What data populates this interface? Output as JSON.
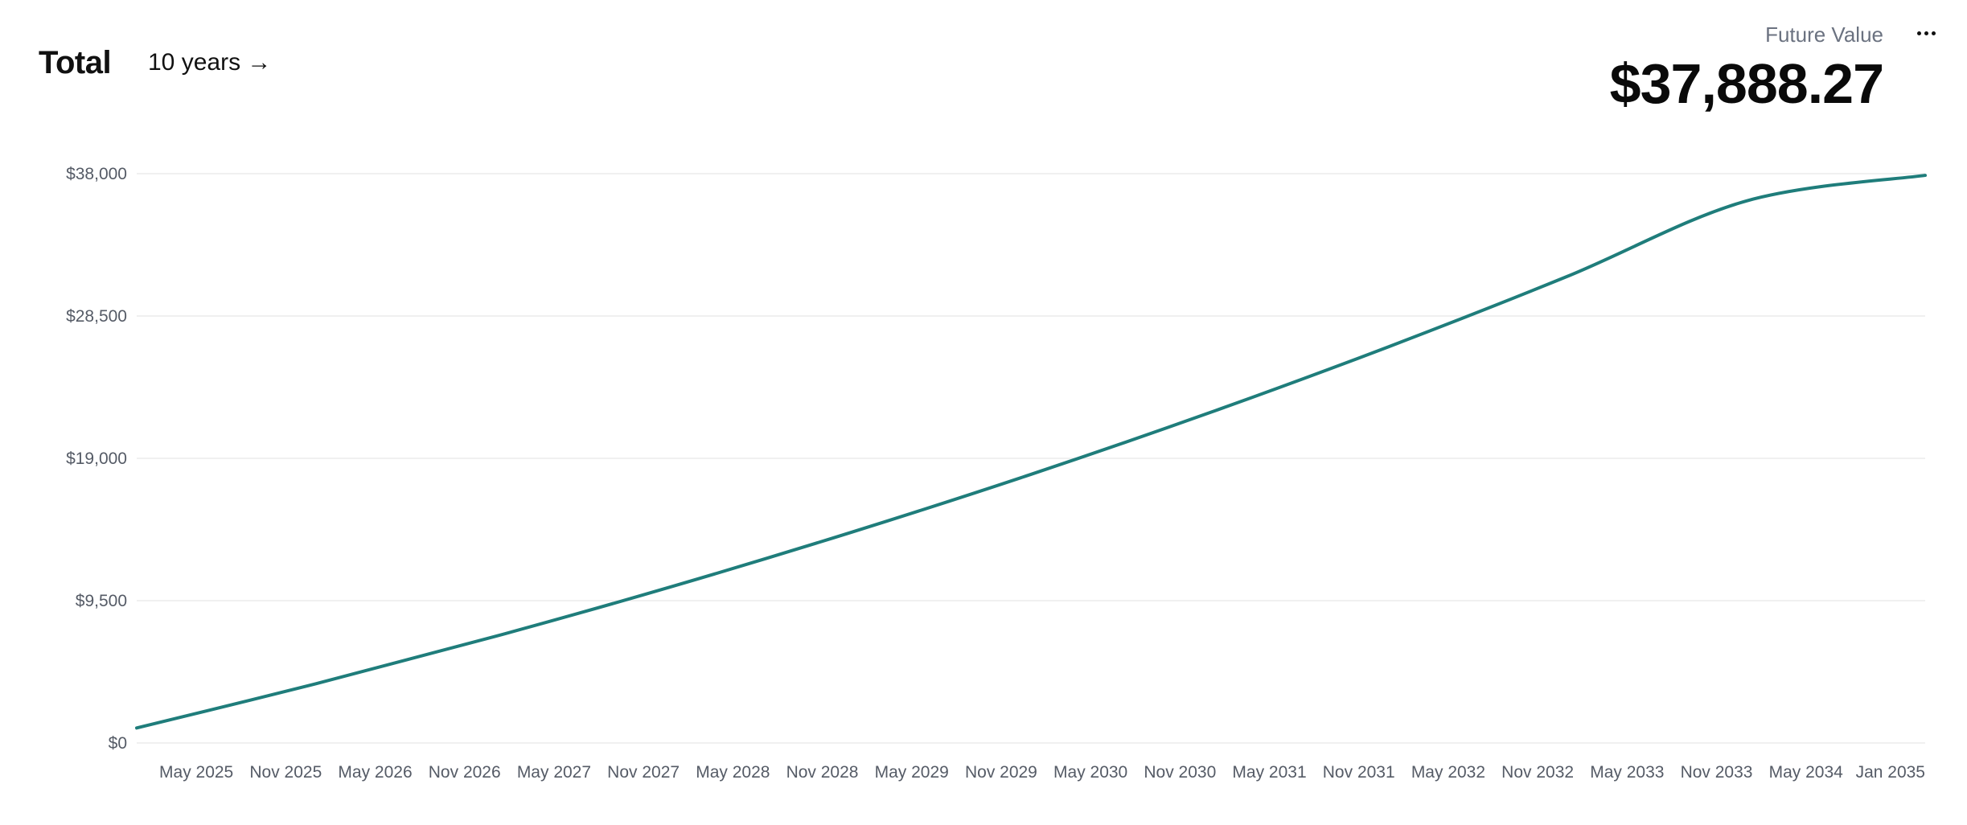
{
  "header": {
    "title": "Total",
    "range_label": "10 years →",
    "future_value_label": "Future Value",
    "future_value": "$37,888.27",
    "more_icon": "ellipsis-icon"
  },
  "colors": {
    "line": "#1f7d7b",
    "grid": "#ececec",
    "tick_text": "#555b66"
  },
  "chart_data": {
    "type": "line",
    "title": "",
    "xlabel": "",
    "ylabel": "",
    "ylim": [
      0,
      38000
    ],
    "yticks": [
      0,
      9500,
      19000,
      28500,
      38000
    ],
    "ytick_labels": [
      "$0",
      "$9,500",
      "$19,000",
      "$28,500",
      "$38,000"
    ],
    "xticks": [
      "2025-05",
      "2025-11",
      "2026-05",
      "2026-11",
      "2027-05",
      "2027-11",
      "2028-05",
      "2028-11",
      "2029-05",
      "2029-11",
      "2030-05",
      "2030-11",
      "2031-05",
      "2031-11",
      "2032-05",
      "2032-11",
      "2033-05",
      "2033-11",
      "2034-05",
      "2035-01"
    ],
    "xtick_labels": [
      "May 2025",
      "Nov 2025",
      "May 2026",
      "Nov 2026",
      "May 2027",
      "Nov 2027",
      "May 2028",
      "Nov 2028",
      "May 2029",
      "Nov 2029",
      "May 2030",
      "Nov 2030",
      "May 2031",
      "Nov 2031",
      "May 2032",
      "Nov 2032",
      "May 2033",
      "Nov 2033",
      "May 2034",
      "Jan 2035"
    ],
    "xlim": [
      "2025-01",
      "2035-01"
    ],
    "grid": true,
    "legend": "none",
    "series": [
      {
        "x": [
          "2025-01",
          "2026-01",
          "2027-01",
          "2028-01",
          "2029-01",
          "2030-01",
          "2031-01",
          "2032-01",
          "2033-01",
          "2034-01",
          "2035-01"
        ],
        "values": [
          1000,
          3950,
          7100,
          10470,
          14080,
          17930,
          22050,
          26450,
          31150,
          36180,
          37888.27
        ]
      }
    ]
  }
}
